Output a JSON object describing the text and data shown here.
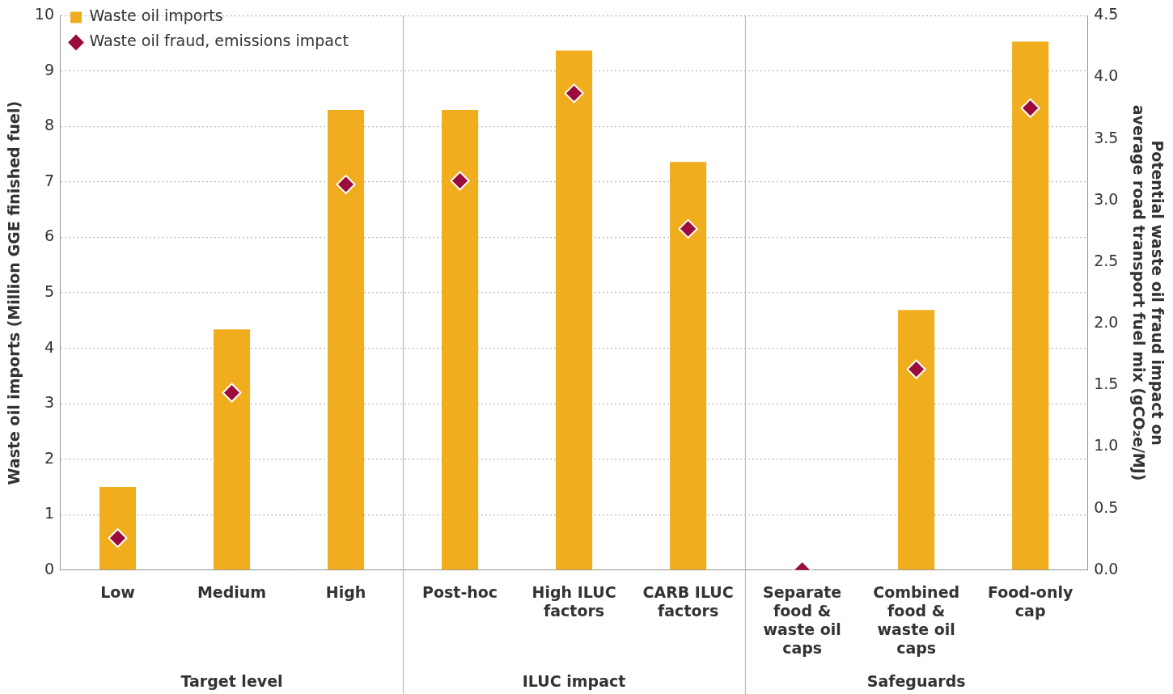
{
  "chart_data": {
    "type": "bar",
    "categories": [
      "Low",
      "Medium",
      "High",
      "Post-hoc",
      "High ILUC factors",
      "CARB ILUC factors",
      "Separate food & waste oil caps",
      "Combined food & waste oil caps",
      "Food-only cap"
    ],
    "series": [
      {
        "name": "Waste oil imports",
        "color": "#f0ae1e",
        "values": [
          1.5,
          4.34,
          8.3,
          8.3,
          9.37,
          7.36,
          0,
          4.69,
          9.53
        ]
      },
      {
        "name": "Waste oil fraud, emissions impact",
        "type": "scatter",
        "axis": "y2",
        "marker": "diamond",
        "color": "#9b0b3b",
        "values": [
          0.26,
          1.44,
          3.13,
          3.16,
          3.87,
          2.77,
          0,
          1.63,
          3.75
        ]
      }
    ],
    "ylabel": "Waste oil imports (Million GGE finished fuel)",
    "y2label": "Potential waste oil fraud impact on average road transport fuel mix (gCO₂e/MJ)",
    "ylim": [
      0,
      10
    ],
    "yticks": [
      0,
      1,
      2,
      3,
      4,
      5,
      6,
      7,
      8,
      9,
      10
    ],
    "y2lim": [
      0,
      4.5
    ],
    "y2ticks": [
      {
        "value": 0,
        "label": "0.0"
      },
      {
        "value": 0.5,
        "label": "0.5"
      },
      {
        "value": 1,
        "label": "1.0"
      },
      {
        "value": 1.5,
        "label": "1.5"
      },
      {
        "value": 2,
        "label": "2.0"
      },
      {
        "value": 2.5,
        "label": "2.5"
      },
      {
        "value": 3,
        "label": "3.0"
      },
      {
        "value": 3.5,
        "label": "3.5"
      },
      {
        "value": 4,
        "label": "4.0"
      },
      {
        "value": 4.5,
        "label": "4.5"
      }
    ],
    "annotations": [
      "Target level",
      "ILUC impact",
      "Safeguards"
    ],
    "grid": "y",
    "legend": "top left"
  }
}
